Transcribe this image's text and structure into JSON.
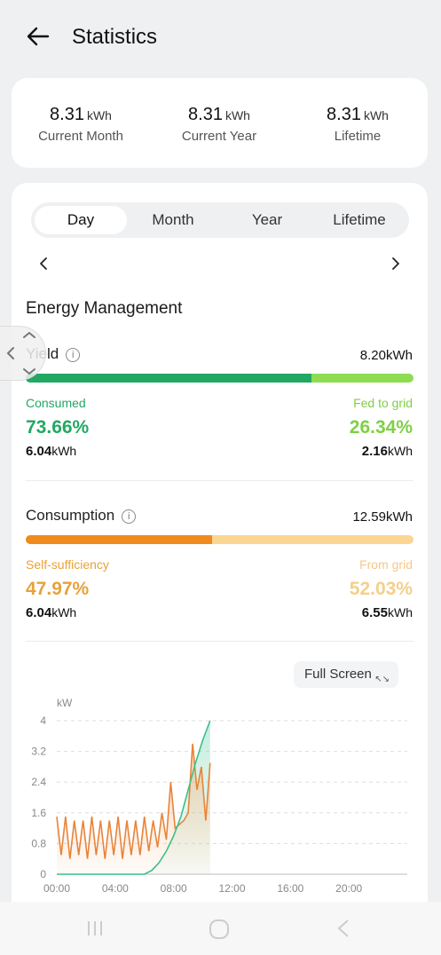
{
  "header": {
    "title": "Statistics"
  },
  "summary": [
    {
      "value": "8.31",
      "unit": "kWh",
      "label": "Current Month"
    },
    {
      "value": "8.31",
      "unit": "kWh",
      "label": "Current Year"
    },
    {
      "value": "8.31",
      "unit": "kWh",
      "label": "Lifetime"
    }
  ],
  "tabs": [
    {
      "label": "Day",
      "active": true
    },
    {
      "label": "Month",
      "active": false
    },
    {
      "label": "Year",
      "active": false
    },
    {
      "label": "Lifetime",
      "active": false
    }
  ],
  "section_title": "Energy Management",
  "yield": {
    "label": "Yield",
    "total_value": "8.20",
    "total_unit": "kWh",
    "consumed_label": "Consumed",
    "consumed_pct": "73.66%",
    "consumed_value": "6.04",
    "consumed_unit": "kWh",
    "fed_label": "Fed to grid",
    "fed_pct": "26.34%",
    "fed_value": "2.16",
    "fed_unit": "kWh",
    "consumed_fraction": 0.7366,
    "color_primary": "#22a862",
    "color_secondary": "#8edc52"
  },
  "consumption": {
    "label": "Consumption",
    "total_value": "12.59",
    "total_unit": "kWh",
    "self_label": "Self-sufficiency",
    "self_pct": "47.97%",
    "self_value": "6.04",
    "self_unit": "kWh",
    "grid_label": "From grid",
    "grid_pct": "52.03%",
    "grid_value": "6.55",
    "grid_unit": "kWh",
    "self_fraction": 0.4797,
    "color_primary": "#f08a1c",
    "color_secondary": "#fbd592"
  },
  "fullscreen_label": "Full Screen",
  "chart_data": {
    "type": "line",
    "ylabel": "kW",
    "ylim": [
      0,
      4
    ],
    "yticks": [
      "0",
      "0.8",
      "1.6",
      "2.4",
      "3.2",
      "4"
    ],
    "xticks": [
      "00:00",
      "04:00",
      "08:00",
      "12:00",
      "16:00",
      "20:00"
    ],
    "grid": true,
    "series": [
      {
        "color": "#3cbf8a",
        "x": [
          0,
          6,
          6.5,
          7,
          7.5,
          8,
          8.5,
          9,
          9.5,
          10,
          10.5
        ],
        "values": [
          0,
          0,
          0.1,
          0.3,
          0.6,
          1.0,
          1.5,
          2.2,
          2.9,
          3.5,
          4.0
        ]
      },
      {
        "color": "#e8843a",
        "x": [
          0,
          0.3,
          0.6,
          0.9,
          1.2,
          1.5,
          1.8,
          2.1,
          2.4,
          2.7,
          3.0,
          3.3,
          3.6,
          3.9,
          4.2,
          4.5,
          4.8,
          5.1,
          5.4,
          5.7,
          6.0,
          6.3,
          6.6,
          6.9,
          7.2,
          7.5,
          7.8,
          8.1,
          8.4,
          8.7,
          9.0,
          9.3,
          9.6,
          9.9,
          10.2,
          10.5
        ],
        "values": [
          1.5,
          0.5,
          1.5,
          0.4,
          1.4,
          0.5,
          1.4,
          0.4,
          1.5,
          0.5,
          1.4,
          0.4,
          1.4,
          0.5,
          1.5,
          0.4,
          1.4,
          0.5,
          1.4,
          0.5,
          1.5,
          0.6,
          1.4,
          0.7,
          1.6,
          0.9,
          2.4,
          1.2,
          1.3,
          1.4,
          1.6,
          3.4,
          2.2,
          2.8,
          1.4,
          2.9
        ]
      }
    ]
  }
}
